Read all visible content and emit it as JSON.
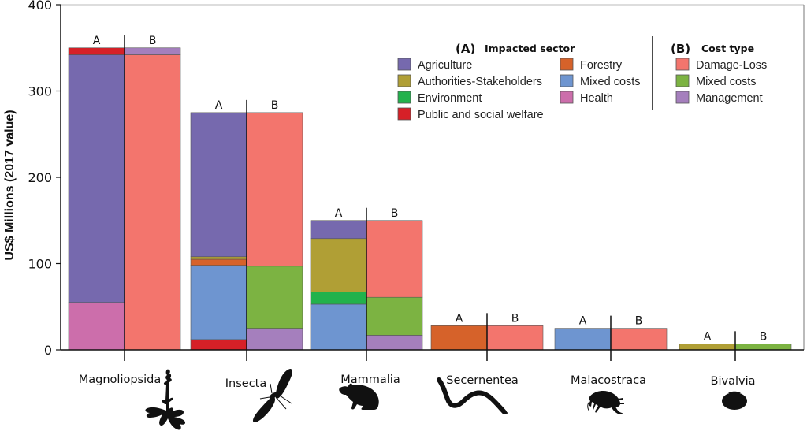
{
  "chart_data": {
    "type": "bar",
    "stacked": true,
    "title": "",
    "xlabel": "",
    "ylabel": "US$ Millions (2017 value)",
    "ylim": [
      0,
      400
    ],
    "yticks": [
      0,
      100,
      200,
      300,
      400
    ],
    "grid": false,
    "categories": [
      "Magnoliopsida",
      "Insecta",
      "Mammalia",
      "Secernentea",
      "Malacostraca",
      "Bivalvia"
    ],
    "bar_pair_labels": [
      "A",
      "B"
    ],
    "legend": {
      "A": {
        "title_prefix": "(A)",
        "title": "Impacted sector",
        "placement": "top-right",
        "entries": [
          {
            "name": "Agriculture",
            "color": "#7669ae"
          },
          {
            "name": "Authorities-Stakeholders",
            "color": "#b09f35"
          },
          {
            "name": "Environment",
            "color": "#22b24c"
          },
          {
            "name": "Public and social welfare",
            "color": "#d62027"
          },
          {
            "name": "Forestry",
            "color": "#d6622a"
          },
          {
            "name": "Mixed costs",
            "color": "#6e95d0"
          },
          {
            "name": "Health",
            "color": "#cc6eab"
          }
        ]
      },
      "B": {
        "title_prefix": "(B)",
        "title": "Cost type",
        "placement": "top-right",
        "entries": [
          {
            "name": "Damage-Loss",
            "color": "#f3756d"
          },
          {
            "name": "Mixed costs",
            "color": "#7cb342"
          },
          {
            "name": "Management",
            "color": "#a57fbd"
          }
        ]
      }
    },
    "series_A": [
      {
        "category": "Magnoliopsida",
        "segments": [
          {
            "name": "Health",
            "value": 55
          },
          {
            "name": "Agriculture",
            "value": 287
          },
          {
            "name": "Public and social welfare",
            "value": 8
          }
        ]
      },
      {
        "category": "Insecta",
        "segments": [
          {
            "name": "Public and social welfare",
            "value": 12
          },
          {
            "name": "Mixed costs",
            "value": 86
          },
          {
            "name": "Forestry",
            "value": 7
          },
          {
            "name": "Authorities-Stakeholders",
            "value": 3
          },
          {
            "name": "Agriculture",
            "value": 167
          }
        ]
      },
      {
        "category": "Mammalia",
        "segments": [
          {
            "name": "Mixed costs",
            "value": 53
          },
          {
            "name": "Environment",
            "value": 14
          },
          {
            "name": "Authorities-Stakeholders",
            "value": 62
          },
          {
            "name": "Agriculture",
            "value": 21
          }
        ]
      },
      {
        "category": "Secernentea",
        "segments": [
          {
            "name": "Forestry",
            "value": 28
          }
        ]
      },
      {
        "category": "Malacostraca",
        "segments": [
          {
            "name": "Mixed costs",
            "value": 25
          }
        ]
      },
      {
        "category": "Bivalvia",
        "segments": [
          {
            "name": "Authorities-Stakeholders",
            "value": 7
          }
        ]
      }
    ],
    "series_B": [
      {
        "category": "Magnoliopsida",
        "segments": [
          {
            "name": "Damage-Loss",
            "value": 342
          },
          {
            "name": "Management",
            "value": 8
          }
        ]
      },
      {
        "category": "Insecta",
        "segments": [
          {
            "name": "Management",
            "value": 25
          },
          {
            "name": "Mixed costs",
            "value": 72
          },
          {
            "name": "Damage-Loss",
            "value": 178
          }
        ]
      },
      {
        "category": "Mammalia",
        "segments": [
          {
            "name": "Management",
            "value": 17
          },
          {
            "name": "Mixed costs",
            "value": 44
          },
          {
            "name": "Damage-Loss",
            "value": 89
          }
        ]
      },
      {
        "category": "Secernentea",
        "segments": [
          {
            "name": "Damage-Loss",
            "value": 28
          }
        ]
      },
      {
        "category": "Malacostraca",
        "segments": [
          {
            "name": "Damage-Loss",
            "value": 25
          }
        ]
      },
      {
        "category": "Bivalvia",
        "segments": [
          {
            "name": "Mixed costs",
            "value": 7
          }
        ]
      }
    ],
    "silhouettes": [
      {
        "category": "Magnoliopsida",
        "icon": "plant-icon"
      },
      {
        "category": "Insecta",
        "icon": "moth-icon"
      },
      {
        "category": "Mammalia",
        "icon": "rodent-icon"
      },
      {
        "category": "Secernentea",
        "icon": "nematode-icon"
      },
      {
        "category": "Malacostraca",
        "icon": "amphipod-icon"
      },
      {
        "category": "Bivalvia",
        "icon": "clam-icon"
      }
    ]
  }
}
